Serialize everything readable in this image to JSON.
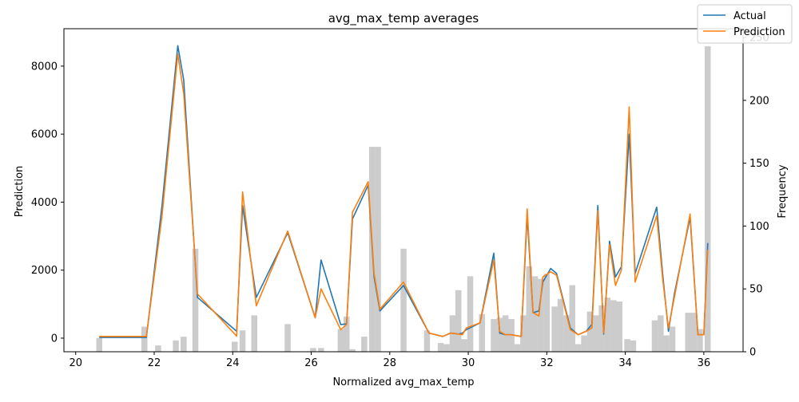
{
  "chart_data": {
    "type": "line",
    "title": "avg_max_temp averages",
    "xlabel": "Normalized avg_max_temp",
    "ylabel": "Prediction",
    "y2label": "Frequency",
    "xlim": [
      19.7,
      37.0
    ],
    "ylim": [
      -400,
      9100
    ],
    "y2lim": [
      0,
      257
    ],
    "xticks": [
      "20",
      "22",
      "24",
      "26",
      "28",
      "30",
      "32",
      "34",
      "36"
    ],
    "yticks": [
      "0",
      "2000",
      "4000",
      "6000",
      "8000"
    ],
    "y2ticks": [
      "0",
      "50",
      "100",
      "150",
      "200",
      "250"
    ],
    "legend_position": "top-right",
    "series": [
      {
        "name": "Actual",
        "color": "#1f77b4",
        "x": [
          20.6,
          21.8,
          22.2,
          22.6,
          22.75,
          23.1,
          24.1,
          24.25,
          24.6,
          25.4,
          26.1,
          26.25,
          26.75,
          26.9,
          27.05,
          27.45,
          27.6,
          27.75,
          28.35,
          29.0,
          29.35,
          29.55,
          29.75,
          29.85,
          29.95,
          30.3,
          30.65,
          30.8,
          30.95,
          31.1,
          31.35,
          31.5,
          31.65,
          31.8,
          31.9,
          32.1,
          32.25,
          32.6,
          32.8,
          33.0,
          33.15,
          33.3,
          33.45,
          33.6,
          33.75,
          33.9,
          34.1,
          34.25,
          34.8,
          34.95,
          35.1,
          35.25,
          35.65,
          35.85,
          36.0,
          36.1
        ],
        "y": [
          20,
          20,
          3900,
          8600,
          7600,
          1200,
          200,
          3900,
          1200,
          3100,
          600,
          2300,
          400,
          420,
          3500,
          4500,
          1800,
          800,
          1550,
          150,
          50,
          150,
          120,
          150,
          250,
          450,
          2500,
          150,
          100,
          100,
          50,
          3600,
          750,
          800,
          1650,
          2050,
          1900,
          300,
          100,
          200,
          400,
          3900,
          120,
          2850,
          1800,
          2100,
          6000,
          1900,
          3850,
          1900,
          200,
          1300,
          3550,
          100,
          100,
          2800
        ]
      },
      {
        "name": "Prediction",
        "color": "#ff7f0e",
        "x": [
          20.6,
          21.8,
          22.2,
          22.6,
          22.75,
          23.1,
          24.1,
          24.25,
          24.6,
          25.4,
          26.1,
          26.25,
          26.75,
          26.9,
          27.05,
          27.45,
          27.6,
          27.75,
          28.35,
          29.0,
          29.35,
          29.55,
          29.75,
          29.85,
          29.95,
          30.3,
          30.65,
          30.8,
          30.95,
          31.1,
          31.35,
          31.5,
          31.65,
          31.8,
          31.9,
          32.1,
          32.25,
          32.6,
          32.8,
          33.0,
          33.15,
          33.3,
          33.45,
          33.6,
          33.75,
          33.9,
          34.1,
          34.25,
          34.8,
          34.95,
          35.1,
          35.25,
          35.65,
          35.85,
          36.0,
          36.1
        ],
        "y": [
          50,
          50,
          3600,
          8350,
          7200,
          1300,
          60,
          4300,
          950,
          3150,
          600,
          1450,
          250,
          400,
          3700,
          4600,
          1900,
          850,
          1650,
          150,
          50,
          150,
          120,
          100,
          300,
          450,
          2300,
          200,
          100,
          100,
          50,
          3800,
          750,
          650,
          1800,
          1950,
          1850,
          250,
          100,
          200,
          300,
          3750,
          150,
          2750,
          1550,
          2000,
          6800,
          1650,
          3600,
          1750,
          300,
          1200,
          3650,
          100,
          100,
          2600
        ]
      }
    ],
    "histogram": {
      "name": "Frequency",
      "color": "#cccccc",
      "bins": [
        {
          "x": 20.6,
          "count": 11
        },
        {
          "x": 21.75,
          "count": 20
        },
        {
          "x": 22.1,
          "count": 5
        },
        {
          "x": 22.55,
          "count": 9
        },
        {
          "x": 22.75,
          "count": 12
        },
        {
          "x": 23.05,
          "count": 82
        },
        {
          "x": 24.05,
          "count": 8
        },
        {
          "x": 24.25,
          "count": 17
        },
        {
          "x": 24.55,
          "count": 29
        },
        {
          "x": 25.4,
          "count": 22
        },
        {
          "x": 26.05,
          "count": 3
        },
        {
          "x": 26.25,
          "count": 3
        },
        {
          "x": 26.75,
          "count": 18
        },
        {
          "x": 26.9,
          "count": 28
        },
        {
          "x": 27.05,
          "count": 2
        },
        {
          "x": 27.35,
          "count": 12
        },
        {
          "x": 27.55,
          "count": 163
        },
        {
          "x": 27.7,
          "count": 163
        },
        {
          "x": 28.35,
          "count": 82
        },
        {
          "x": 28.95,
          "count": 17
        },
        {
          "x": 29.3,
          "count": 7
        },
        {
          "x": 29.45,
          "count": 6
        },
        {
          "x": 29.6,
          "count": 29
        },
        {
          "x": 29.75,
          "count": 49
        },
        {
          "x": 29.9,
          "count": 10
        },
        {
          "x": 30.05,
          "count": 60
        },
        {
          "x": 30.35,
          "count": 30
        },
        {
          "x": 30.65,
          "count": 26
        },
        {
          "x": 30.8,
          "count": 27
        },
        {
          "x": 30.95,
          "count": 29
        },
        {
          "x": 31.1,
          "count": 26
        },
        {
          "x": 31.25,
          "count": 6
        },
        {
          "x": 31.4,
          "count": 29
        },
        {
          "x": 31.55,
          "count": 68
        },
        {
          "x": 31.7,
          "count": 60
        },
        {
          "x": 31.85,
          "count": 58
        },
        {
          "x": 32.0,
          "count": 62
        },
        {
          "x": 32.2,
          "count": 36
        },
        {
          "x": 32.35,
          "count": 42
        },
        {
          "x": 32.5,
          "count": 29
        },
        {
          "x": 32.65,
          "count": 53
        },
        {
          "x": 32.8,
          "count": 6
        },
        {
          "x": 32.95,
          "count": 13
        },
        {
          "x": 33.1,
          "count": 32
        },
        {
          "x": 33.25,
          "count": 29
        },
        {
          "x": 33.4,
          "count": 37
        },
        {
          "x": 33.55,
          "count": 43
        },
        {
          "x": 33.7,
          "count": 41
        },
        {
          "x": 33.85,
          "count": 40
        },
        {
          "x": 34.05,
          "count": 10
        },
        {
          "x": 34.2,
          "count": 9
        },
        {
          "x": 34.75,
          "count": 25
        },
        {
          "x": 34.9,
          "count": 29
        },
        {
          "x": 35.05,
          "count": 13
        },
        {
          "x": 35.2,
          "count": 20
        },
        {
          "x": 35.6,
          "count": 31
        },
        {
          "x": 35.75,
          "count": 31
        },
        {
          "x": 35.9,
          "count": 18
        },
        {
          "x": 36.1,
          "count": 243
        }
      ]
    }
  }
}
